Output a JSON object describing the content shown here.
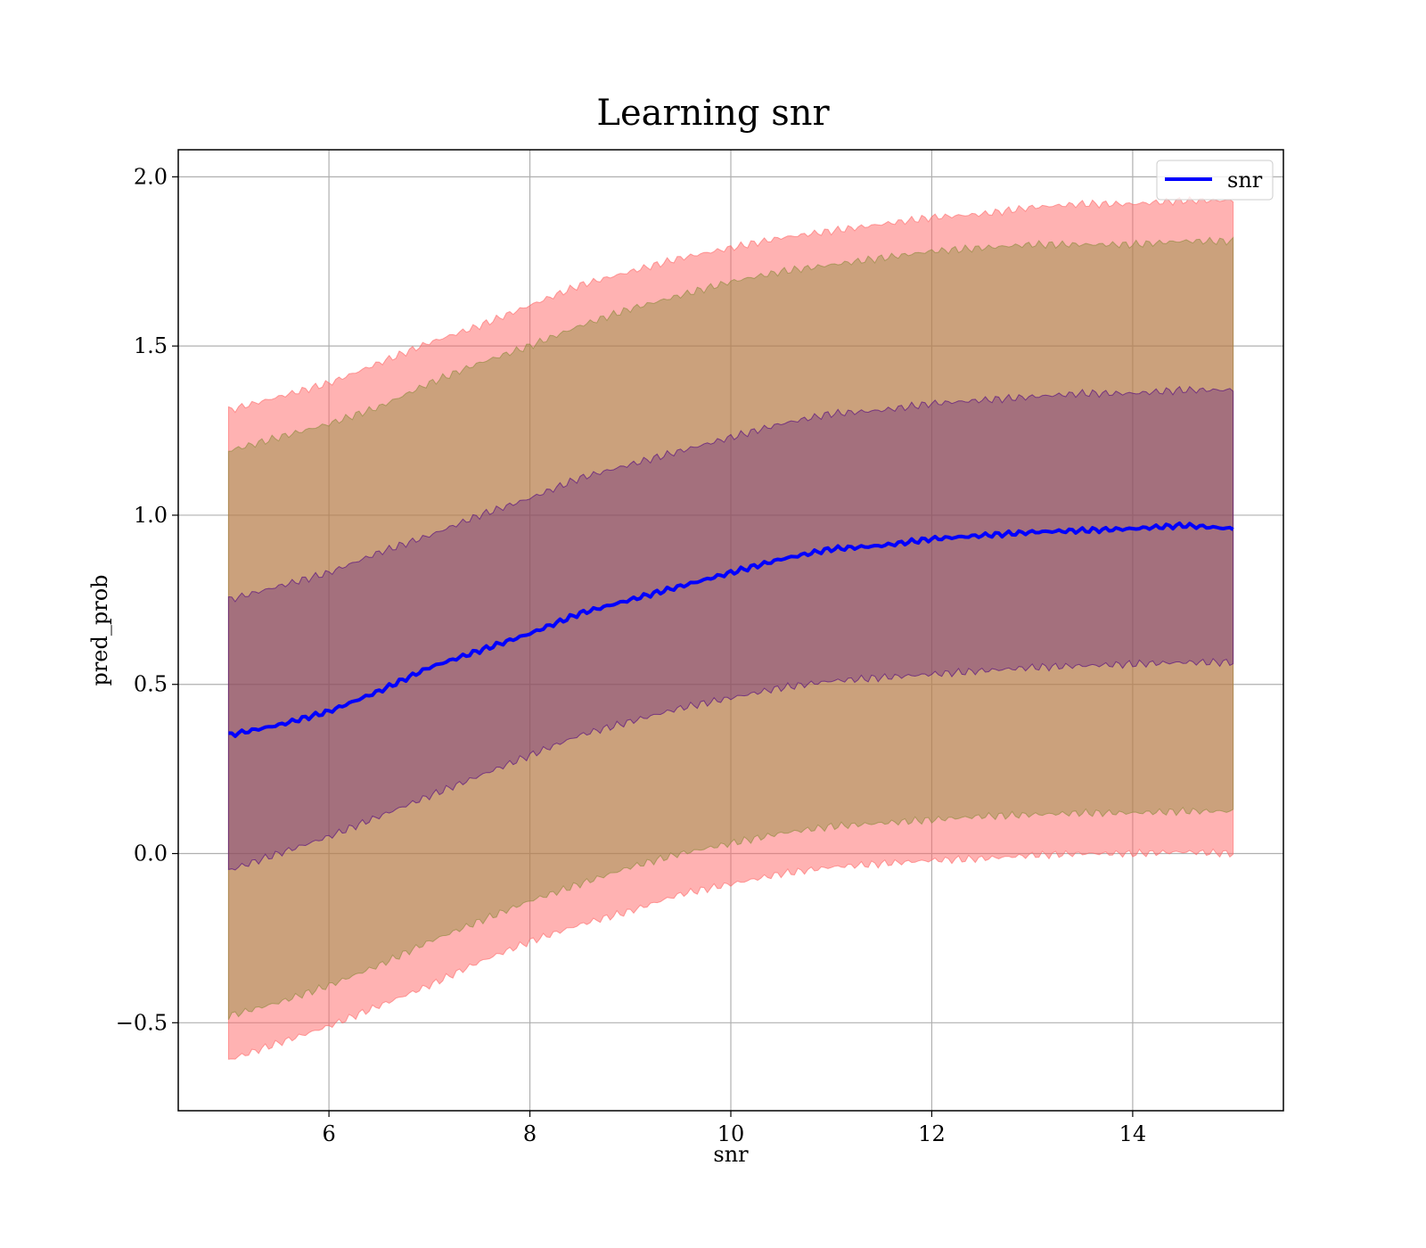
{
  "chart_data": {
    "type": "area",
    "title": "Learning snr",
    "xlabel": "snr",
    "ylabel": "pred_prob",
    "xlim": [
      4.5,
      15.5
    ],
    "ylim": [
      -0.76,
      2.08
    ],
    "xticks": [
      6,
      8,
      10,
      12,
      14
    ],
    "xtick_labels": [
      "6",
      "8",
      "10",
      "12",
      "14"
    ],
    "yticks": [
      -0.5,
      0.0,
      0.5,
      1.0,
      1.5,
      2.0
    ],
    "ytick_labels": [
      "−0.5",
      "0.0",
      "0.5",
      "1.0",
      "1.5",
      "2.0"
    ],
    "grid": true,
    "legend_position": "top-right",
    "x": [
      5,
      5.5,
      6,
      6.5,
      7,
      7.5,
      8,
      8.5,
      9,
      9.5,
      10,
      10.5,
      11,
      11.5,
      12,
      12.5,
      13,
      13.5,
      14,
      14.5,
      15
    ],
    "series": [
      {
        "name": "snr",
        "color": "#0000ff",
        "values": [
          0.35,
          0.38,
          0.42,
          0.48,
          0.55,
          0.6,
          0.65,
          0.71,
          0.75,
          0.79,
          0.83,
          0.87,
          0.9,
          0.91,
          0.93,
          0.94,
          0.95,
          0.955,
          0.96,
          0.97,
          0.96
        ]
      }
    ],
    "bands": [
      {
        "color": "#ff6666",
        "opacity": 0.5,
        "lower": [
          -0.61,
          -0.56,
          -0.51,
          -0.45,
          -0.39,
          -0.32,
          -0.26,
          -0.21,
          -0.17,
          -0.12,
          -0.09,
          -0.06,
          -0.04,
          -0.03,
          -0.02,
          -0.015,
          -0.005,
          0.0,
          0.0,
          0.005,
          0.0
        ],
        "upper": [
          1.31,
          1.35,
          1.39,
          1.45,
          1.51,
          1.56,
          1.62,
          1.68,
          1.72,
          1.76,
          1.79,
          1.82,
          1.84,
          1.86,
          1.88,
          1.89,
          1.91,
          1.92,
          1.92,
          1.93,
          1.93
        ]
      },
      {
        "color": "#8b8b3a",
        "opacity": 0.45,
        "lower": [
          -0.48,
          -0.44,
          -0.39,
          -0.33,
          -0.26,
          -0.2,
          -0.14,
          -0.09,
          -0.04,
          0.0,
          0.03,
          0.06,
          0.08,
          0.09,
          0.1,
          0.11,
          0.115,
          0.12,
          0.12,
          0.125,
          0.125
        ],
        "upper": [
          1.19,
          1.23,
          1.27,
          1.32,
          1.39,
          1.45,
          1.5,
          1.56,
          1.61,
          1.65,
          1.69,
          1.72,
          1.74,
          1.76,
          1.78,
          1.79,
          1.8,
          1.8,
          1.8,
          1.81,
          1.81
        ]
      },
      {
        "color": "#4b0082",
        "opacity": 0.3,
        "lower": [
          -0.05,
          0.0,
          0.05,
          0.11,
          0.17,
          0.23,
          0.29,
          0.35,
          0.39,
          0.43,
          0.46,
          0.49,
          0.51,
          0.52,
          0.53,
          0.54,
          0.55,
          0.555,
          0.56,
          0.565,
          0.565
        ],
        "upper": [
          0.75,
          0.79,
          0.83,
          0.89,
          0.94,
          1.0,
          1.05,
          1.11,
          1.15,
          1.19,
          1.23,
          1.27,
          1.3,
          1.31,
          1.33,
          1.34,
          1.35,
          1.36,
          1.36,
          1.37,
          1.37
        ]
      }
    ]
  }
}
